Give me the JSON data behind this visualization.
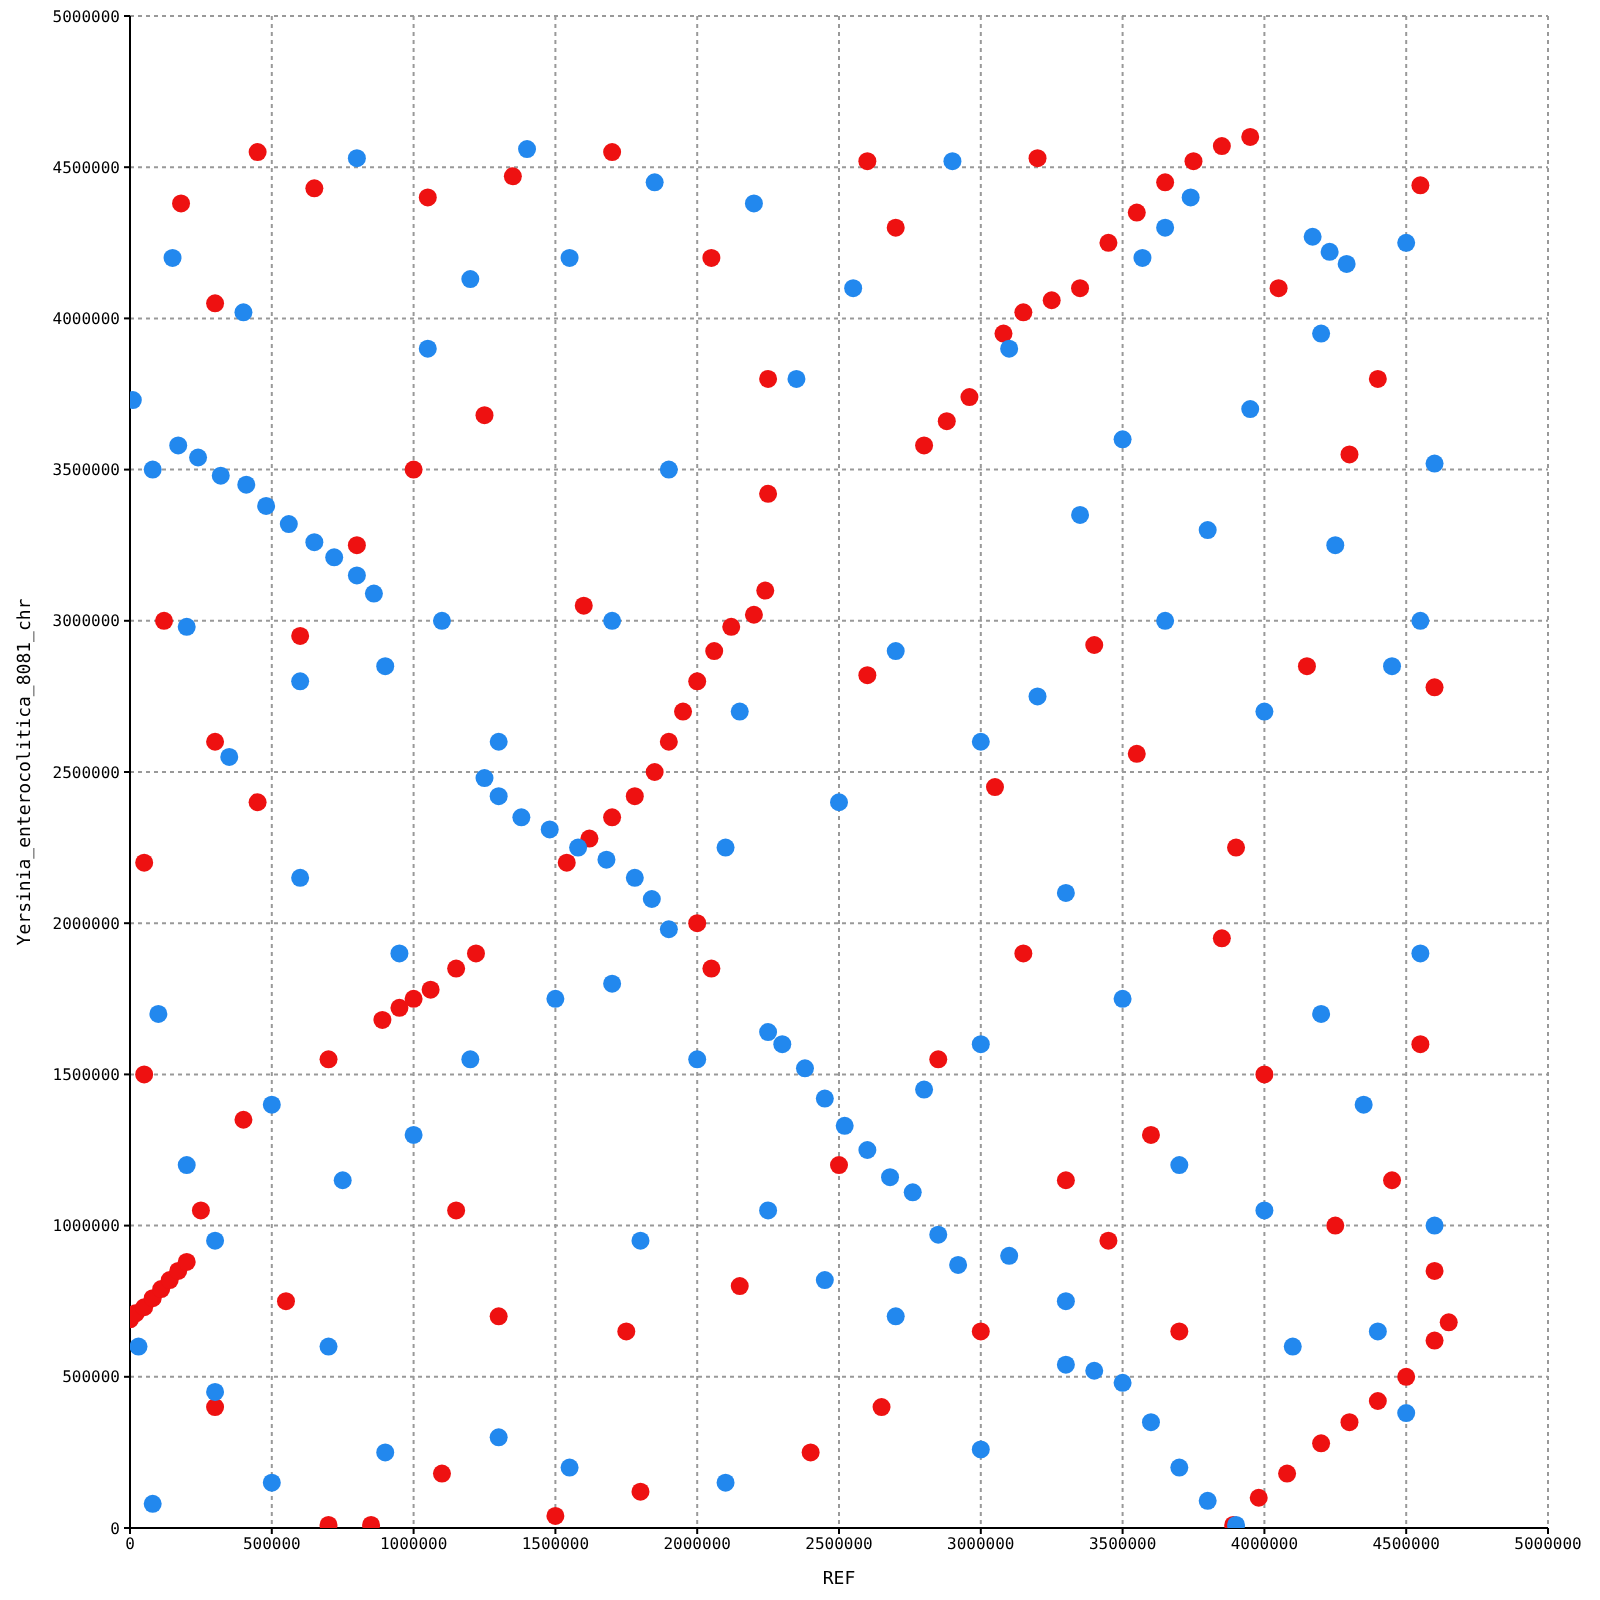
{
  "chart_data": {
    "type": "scatter",
    "xlabel": "REF",
    "ylabel": "Yersinia_enterocolitica_8081_chr",
    "xlim": [
      0,
      5000000
    ],
    "ylim": [
      0,
      5000000
    ],
    "xticks": [
      0,
      500000,
      1000000,
      1500000,
      2000000,
      2500000,
      3000000,
      3500000,
      4000000,
      4500000,
      5000000
    ],
    "yticks": [
      0,
      500000,
      1000000,
      1500000,
      2000000,
      2500000,
      3000000,
      3500000,
      4000000,
      4500000,
      5000000
    ],
    "grid": true,
    "marker": "circle",
    "series": [
      {
        "color": "#ee1111",
        "x": [
          0,
          20000,
          50000,
          80000,
          110000,
          140000,
          170000,
          200000,
          890000,
          950000,
          1000000,
          1060000,
          1150000,
          1220000,
          1540000,
          1620000,
          1700000,
          1780000,
          1850000,
          1900000,
          1950000,
          2000000,
          2060000,
          2120000,
          2200000,
          2240000,
          2800000,
          2880000,
          2960000,
          3080000,
          3150000,
          3250000,
          3350000,
          3450000,
          3550000,
          3650000,
          3750000,
          3850000,
          3950000,
          3890000,
          3980000,
          4080000,
          4200000,
          4300000,
          4400000,
          4500000,
          4600000,
          4650000,
          180000,
          300000,
          450000,
          650000,
          1050000,
          1350000,
          1700000,
          2050000,
          2250000,
          2600000,
          2700000,
          3200000,
          4050000,
          4300000,
          4550000,
          4400000,
          120000,
          300000,
          450000,
          600000,
          800000,
          1000000,
          1250000,
          1600000,
          2250000,
          2600000,
          3050000,
          3400000,
          3550000,
          3900000,
          4150000,
          4600000,
          50000,
          50000,
          250000,
          400000,
          700000,
          300000,
          550000,
          700000,
          850000,
          1150000,
          1300000,
          1500000,
          1750000,
          2000000,
          2050000,
          2150000,
          2500000,
          2650000,
          2850000,
          3000000,
          3150000,
          3300000,
          3450000,
          3600000,
          3700000,
          3850000,
          4000000,
          4250000,
          4450000,
          4550000,
          4600000,
          1100000,
          1800000,
          2400000
        ],
        "values": [
          690000,
          710000,
          730000,
          760000,
          790000,
          820000,
          850000,
          880000,
          1680000,
          1720000,
          1750000,
          1780000,
          1850000,
          1900000,
          2200000,
          2280000,
          2350000,
          2420000,
          2500000,
          2600000,
          2700000,
          2800000,
          2900000,
          2980000,
          3020000,
          3100000,
          3580000,
          3660000,
          3740000,
          3950000,
          4020000,
          4060000,
          4100000,
          4250000,
          4350000,
          4450000,
          4520000,
          4570000,
          4600000,
          10000,
          100000,
          180000,
          280000,
          350000,
          420000,
          500000,
          620000,
          680000,
          4380000,
          4050000,
          4550000,
          4430000,
          4400000,
          4470000,
          4550000,
          4200000,
          3800000,
          4520000,
          4300000,
          4530000,
          4100000,
          3550000,
          4440000,
          3800000,
          3000000,
          2600000,
          2400000,
          2950000,
          3250000,
          3500000,
          3680000,
          3050000,
          3420000,
          2820000,
          2450000,
          2920000,
          2560000,
          2250000,
          2850000,
          2780000,
          2200000,
          1500000,
          1050000,
          1350000,
          1550000,
          400000,
          750000,
          10000,
          10000,
          1050000,
          700000,
          40000,
          650000,
          2000000,
          1850000,
          800000,
          1200000,
          400000,
          1550000,
          650000,
          1900000,
          1150000,
          950000,
          1300000,
          650000,
          1950000,
          1500000,
          1000000,
          1150000,
          1600000,
          850000,
          180000,
          120000,
          250000
        ]
      },
      {
        "color": "#2288ee",
        "x": [
          170000,
          240000,
          320000,
          410000,
          480000,
          560000,
          650000,
          720000,
          800000,
          860000,
          1250000,
          1300000,
          1380000,
          1480000,
          1580000,
          1680000,
          1780000,
          1840000,
          1900000,
          2250000,
          2300000,
          2380000,
          2450000,
          2520000,
          2600000,
          2680000,
          2760000,
          2850000,
          2920000,
          3300000,
          3400000,
          3500000,
          3600000,
          3700000,
          3800000,
          3900000,
          4170000,
          4230000,
          4290000,
          3570000,
          3650000,
          3740000,
          10000,
          80000,
          150000,
          400000,
          800000,
          1050000,
          1200000,
          1400000,
          1550000,
          1850000,
          2200000,
          2350000,
          2550000,
          2900000,
          3100000,
          3500000,
          3950000,
          4200000,
          4500000,
          4600000,
          200000,
          350000,
          600000,
          900000,
          1100000,
          1300000,
          1700000,
          1900000,
          2150000,
          2500000,
          2700000,
          3000000,
          3200000,
          3350000,
          3650000,
          3800000,
          4000000,
          4250000,
          4450000,
          4550000,
          100000,
          200000,
          300000,
          500000,
          600000,
          750000,
          950000,
          1000000,
          1200000,
          1500000,
          1700000,
          2000000,
          2100000,
          2250000,
          2800000,
          3000000,
          3300000,
          3500000,
          3700000,
          4000000,
          4200000,
          4350000,
          4550000,
          4600000,
          30000,
          80000,
          300000,
          500000,
          700000,
          900000,
          1300000,
          1550000,
          1800000,
          2100000,
          2450000,
          2700000,
          3000000,
          3100000,
          3300000,
          4100000,
          4400000,
          4500000
        ],
        "values": [
          3580000,
          3540000,
          3480000,
          3450000,
          3380000,
          3320000,
          3260000,
          3210000,
          3150000,
          3090000,
          2480000,
          2420000,
          2350000,
          2310000,
          2250000,
          2210000,
          2150000,
          2080000,
          1980000,
          1640000,
          1600000,
          1520000,
          1420000,
          1330000,
          1250000,
          1160000,
          1110000,
          970000,
          870000,
          540000,
          520000,
          480000,
          350000,
          200000,
          90000,
          10000,
          4270000,
          4220000,
          4180000,
          4200000,
          4300000,
          4400000,
          3730000,
          3500000,
          4200000,
          4020000,
          4530000,
          3900000,
          4130000,
          4560000,
          4200000,
          4450000,
          4380000,
          3800000,
          4100000,
          4520000,
          3900000,
          3600000,
          3700000,
          3950000,
          4250000,
          3520000,
          2980000,
          2550000,
          2800000,
          2850000,
          3000000,
          2600000,
          3000000,
          3500000,
          2700000,
          2400000,
          2900000,
          2600000,
          2750000,
          3350000,
          3000000,
          3300000,
          2700000,
          3250000,
          2850000,
          3000000,
          1700000,
          1200000,
          950000,
          1400000,
          2150000,
          1150000,
          1900000,
          1300000,
          1550000,
          1750000,
          1800000,
          1550000,
          2250000,
          1050000,
          1450000,
          1600000,
          2100000,
          1750000,
          1200000,
          1050000,
          1700000,
          1400000,
          1900000,
          1000000,
          600000,
          80000,
          450000,
          150000,
          600000,
          250000,
          300000,
          200000,
          950000,
          150000,
          820000,
          700000,
          260000,
          900000,
          750000,
          600000,
          650000,
          380000
        ]
      }
    ]
  }
}
